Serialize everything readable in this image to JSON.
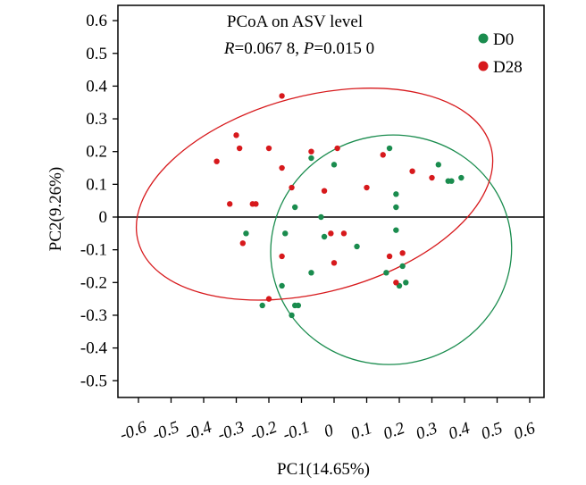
{
  "chart_data": {
    "type": "scatter",
    "title": "PCoA on ASV level",
    "subtitle": {
      "r_label": "R",
      "r_value": "=0.067 8, ",
      "p_label": "P",
      "p_value": "=0.015 0"
    },
    "xlabel": "PC1(14.65%)",
    "ylabel": "PC2(9.26%)",
    "xlim": [
      -0.6,
      0.6
    ],
    "ylim": [
      -0.5,
      0.6
    ],
    "xticks": [
      "-0.6",
      "-0.5",
      "-0.4",
      "-0.3",
      "-0.2",
      "-0.1",
      "0",
      "0.1",
      "0.2",
      "0.3",
      "0.4",
      "0.5",
      "0.6"
    ],
    "xtick_values": [
      -0.6,
      -0.5,
      -0.4,
      -0.3,
      -0.2,
      -0.1,
      0,
      0.1,
      0.2,
      0.3,
      0.4,
      0.5,
      0.6
    ],
    "yticks": [
      "0.6",
      "0.5",
      "0.4",
      "0.3",
      "0.2",
      "0.1",
      "0",
      "-0.1",
      "-0.2",
      "-0.3",
      "-0.4",
      "-0.5"
    ],
    "ytick_values": [
      0.6,
      0.5,
      0.4,
      0.3,
      0.2,
      0.1,
      0,
      -0.1,
      -0.2,
      -0.3,
      -0.4,
      -0.5
    ],
    "zero_line": 0,
    "legend_position": "top-right",
    "series": [
      {
        "name": "D0",
        "color": "#1a8c4e",
        "points": [
          [
            -0.27,
            -0.05
          ],
          [
            -0.15,
            -0.05
          ],
          [
            -0.12,
            0.03
          ],
          [
            -0.04,
            0.0
          ],
          [
            -0.03,
            -0.06
          ],
          [
            -0.07,
            0.18
          ],
          [
            0.0,
            0.16
          ],
          [
            0.07,
            -0.09
          ],
          [
            0.17,
            0.21
          ],
          [
            0.19,
            0.07
          ],
          [
            0.19,
            0.03
          ],
          [
            0.19,
            -0.04
          ],
          [
            0.16,
            -0.17
          ],
          [
            0.21,
            -0.15
          ],
          [
            0.22,
            -0.2
          ],
          [
            0.2,
            -0.21
          ],
          [
            0.32,
            0.16
          ],
          [
            0.35,
            0.11
          ],
          [
            0.36,
            0.11
          ],
          [
            0.39,
            0.12
          ],
          [
            -0.16,
            -0.21
          ],
          [
            -0.07,
            -0.17
          ],
          [
            -0.12,
            -0.27
          ],
          [
            -0.11,
            -0.27
          ],
          [
            -0.13,
            -0.3
          ],
          [
            -0.22,
            -0.27
          ]
        ]
      },
      {
        "name": "D28",
        "color": "#d7191c",
        "points": [
          [
            -0.36,
            0.17
          ],
          [
            -0.3,
            0.25
          ],
          [
            -0.29,
            0.21
          ],
          [
            -0.2,
            0.21
          ],
          [
            -0.16,
            0.37
          ],
          [
            -0.16,
            0.15
          ],
          [
            -0.07,
            0.2
          ],
          [
            0.01,
            0.21
          ],
          [
            -0.32,
            0.04
          ],
          [
            -0.25,
            0.04
          ],
          [
            -0.24,
            0.04
          ],
          [
            -0.13,
            0.09
          ],
          [
            -0.03,
            0.08
          ],
          [
            0.1,
            0.09
          ],
          [
            0.15,
            0.19
          ],
          [
            0.24,
            0.14
          ],
          [
            0.3,
            0.12
          ],
          [
            -0.28,
            -0.08
          ],
          [
            -0.16,
            -0.12
          ],
          [
            -0.01,
            -0.05
          ],
          [
            0.03,
            -0.05
          ],
          [
            0.0,
            -0.14
          ],
          [
            0.17,
            -0.12
          ],
          [
            0.21,
            -0.11
          ],
          [
            0.19,
            -0.2
          ],
          [
            -0.2,
            -0.25
          ]
        ]
      }
    ],
    "ellipses": [
      {
        "series": "D0",
        "color": "#1a8c4e",
        "cx": 0.175,
        "cy": -0.1,
        "rx": 0.37,
        "ry": 0.35,
        "rotate_deg": -10
      },
      {
        "series": "D28",
        "color": "#d7191c",
        "cx": -0.06,
        "cy": 0.07,
        "rx": 0.56,
        "ry": 0.3,
        "rotate_deg": -15
      }
    ]
  }
}
